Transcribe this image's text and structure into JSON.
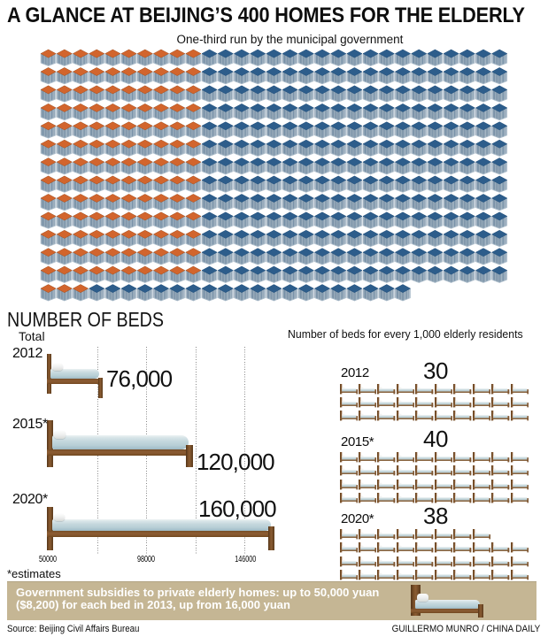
{
  "header": {
    "title": "A GLANCE AT BEIJING’S 400 HOMES FOR THE ELDERLY",
    "subtitle": "One-third run by the municipal government"
  },
  "homes_grid": {
    "total_homes": 400,
    "municipal_homes": 133,
    "columns": 29,
    "rows": [
      {
        "count": 29,
        "municipal": 10
      },
      {
        "count": 29,
        "municipal": 10
      },
      {
        "count": 29,
        "municipal": 10
      },
      {
        "count": 29,
        "municipal": 10
      },
      {
        "count": 29,
        "municipal": 10
      },
      {
        "count": 29,
        "municipal": 10
      },
      {
        "count": 29,
        "municipal": 10
      },
      {
        "count": 29,
        "municipal": 10
      },
      {
        "count": 29,
        "municipal": 10
      },
      {
        "count": 29,
        "municipal": 10
      },
      {
        "count": 29,
        "municipal": 10
      },
      {
        "count": 29,
        "municipal": 10
      },
      {
        "count": 29,
        "municipal": 10
      },
      {
        "count": 23,
        "municipal": 3
      }
    ],
    "colors": {
      "municipal_top": "#d2652d",
      "private_top": "#2d5d8b"
    }
  },
  "beds_chart": {
    "heading": "NUMBER OF BEDS",
    "subheading": "Total",
    "rows": [
      {
        "label": "2012",
        "value": 76000,
        "value_label": "76,000"
      },
      {
        "label": "2015*",
        "value": 120000,
        "value_label": "120,000"
      },
      {
        "label": "2020*",
        "value": 160000,
        "value_label": "160,000"
      }
    ],
    "axis_ticks": [
      {
        "label": "50000",
        "value": 50000
      },
      {
        "label": "98000",
        "value": 98000
      },
      {
        "label": "146000",
        "value": 146000
      }
    ],
    "gridline_values": [
      74000,
      98000,
      122000,
      146000
    ],
    "footnote": "*estimates"
  },
  "per_1000_chart": {
    "title": "Number of beds for every 1,000 elderly residents",
    "rows": [
      {
        "label": "2012",
        "value": 30,
        "value_label": "30",
        "bed_rows": [
          10,
          10,
          10
        ]
      },
      {
        "label": "2015*",
        "value": 40,
        "value_label": "40",
        "bed_rows": [
          10,
          10,
          10,
          10
        ]
      },
      {
        "label": "2020*",
        "value": 38,
        "value_label": "38",
        "bed_rows": [
          8,
          10,
          10,
          10
        ]
      }
    ]
  },
  "banner": {
    "line1": "Government subsidies to private elderly homes: up to 50,000 yuan",
    "line2": "($8,200) for each bed in 2013, up from 16,000 yuan",
    "background": "#c5b694"
  },
  "footer": {
    "source": "Source: Beijing Civil Affairs Bureau",
    "credit": "GUILLERMO MUNRO / CHINA DAILY"
  },
  "chart_data": [
    {
      "type": "pictogram",
      "title": "A GLANCE AT BEIJING’S 400 HOMES FOR THE ELDERLY",
      "subtitle": "One-third run by the municipal government",
      "unit": "homes",
      "series": [
        {
          "name": "Run by municipal government",
          "value": 133,
          "color": "#d2652d"
        },
        {
          "name": "Other homes",
          "value": 267,
          "color": "#2d5d8b"
        }
      ],
      "total": 400
    },
    {
      "type": "bar",
      "title": "NUMBER OF BEDS (Total)",
      "categories": [
        "2012",
        "2015*",
        "2020*"
      ],
      "values": [
        76000,
        120000,
        160000
      ],
      "xlabel": "beds",
      "axis_ticks": [
        50000,
        98000,
        146000
      ],
      "xlim": [
        50000,
        170000
      ],
      "grid": true,
      "note": "*estimates"
    },
    {
      "type": "pictogram",
      "title": "Number of beds for every 1,000 elderly residents",
      "categories": [
        "2012",
        "2015*",
        "2020*"
      ],
      "values": [
        30,
        40,
        38
      ],
      "unit": "beds per 1,000 elderly residents"
    }
  ]
}
